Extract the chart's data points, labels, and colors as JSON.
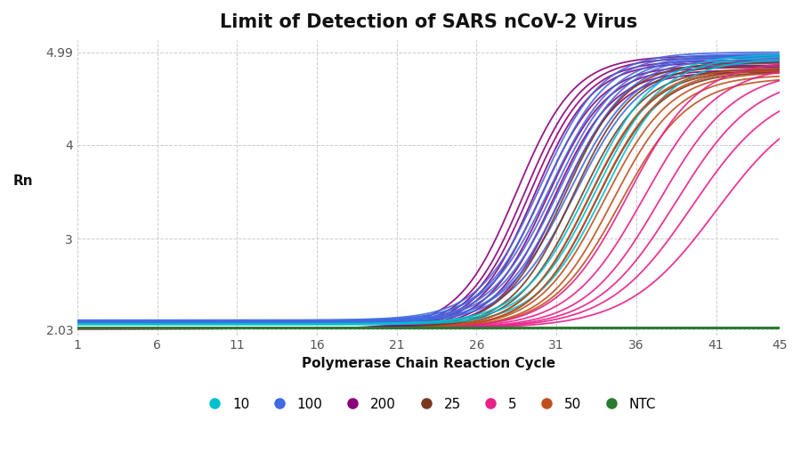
{
  "title": "Limit of Detection of SARS nCoV-2 Virus",
  "xlabel": "Polymerase Chain Reaction Cycle",
  "ylabel": "Rn",
  "x_ticks": [
    1,
    6,
    11,
    16,
    21,
    26,
    31,
    36,
    41,
    45
  ],
  "y_ticks": [
    2.03,
    3,
    4,
    4.99
  ],
  "ylim": [
    1.97,
    5.12
  ],
  "xlim": [
    1,
    45
  ],
  "background_color": "#ffffff",
  "grid_color": "#cccccc",
  "groups": [
    {
      "label": "200",
      "color": "#8b007a",
      "curves": [
        {
          "mid": 28.5,
          "top": 4.95,
          "base": 2.04,
          "k": 0.55
        },
        {
          "mid": 29.0,
          "top": 4.93,
          "base": 2.04,
          "k": 0.55
        },
        {
          "mid": 29.3,
          "top": 4.9,
          "base": 2.04,
          "k": 0.55
        },
        {
          "mid": 29.6,
          "top": 4.88,
          "base": 2.04,
          "k": 0.55
        },
        {
          "mid": 30.0,
          "top": 4.85,
          "base": 2.04,
          "k": 0.53
        },
        {
          "mid": 30.4,
          "top": 4.83,
          "base": 2.04,
          "k": 0.53
        },
        {
          "mid": 30.8,
          "top": 4.8,
          "base": 2.04,
          "k": 0.53
        },
        {
          "mid": 31.2,
          "top": 4.78,
          "base": 2.04,
          "k": 0.53
        }
      ]
    },
    {
      "label": "100",
      "color": "#4169e1",
      "curves": [
        {
          "mid": 30.0,
          "top": 4.99,
          "base": 2.13,
          "k": 0.52
        },
        {
          "mid": 30.3,
          "top": 4.97,
          "base": 2.12,
          "k": 0.52
        },
        {
          "mid": 30.6,
          "top": 4.96,
          "base": 2.12,
          "k": 0.5
        },
        {
          "mid": 30.9,
          "top": 4.95,
          "base": 2.11,
          "k": 0.5
        },
        {
          "mid": 31.2,
          "top": 4.94,
          "base": 2.11,
          "k": 0.5
        },
        {
          "mid": 31.5,
          "top": 4.92,
          "base": 2.1,
          "k": 0.5
        },
        {
          "mid": 31.8,
          "top": 4.9,
          "base": 2.1,
          "k": 0.48
        },
        {
          "mid": 32.2,
          "top": 4.88,
          "base": 2.1,
          "k": 0.48
        }
      ]
    },
    {
      "label": "25",
      "color": "#7b3820",
      "curves": [
        {
          "mid": 31.5,
          "top": 4.88,
          "base": 2.04,
          "k": 0.52
        },
        {
          "mid": 32.0,
          "top": 4.85,
          "base": 2.04,
          "k": 0.52
        },
        {
          "mid": 32.5,
          "top": 4.82,
          "base": 2.04,
          "k": 0.5
        },
        {
          "mid": 33.0,
          "top": 4.8,
          "base": 2.04,
          "k": 0.5
        },
        {
          "mid": 33.5,
          "top": 4.78,
          "base": 2.04,
          "k": 0.5
        }
      ]
    },
    {
      "label": "10",
      "color": "#00c0d0",
      "curves": [
        {
          "mid": 33.0,
          "top": 4.97,
          "base": 2.09,
          "k": 0.48
        },
        {
          "mid": 33.5,
          "top": 4.95,
          "base": 2.09,
          "k": 0.48
        },
        {
          "mid": 34.0,
          "top": 4.92,
          "base": 2.08,
          "k": 0.48
        }
      ]
    },
    {
      "label": "50",
      "color": "#c05020",
      "curves": [
        {
          "mid": 33.0,
          "top": 4.82,
          "base": 2.04,
          "k": 0.5
        },
        {
          "mid": 33.5,
          "top": 4.8,
          "base": 2.04,
          "k": 0.5
        },
        {
          "mid": 34.0,
          "top": 4.78,
          "base": 2.04,
          "k": 0.48
        },
        {
          "mid": 34.5,
          "top": 4.75,
          "base": 2.04,
          "k": 0.48
        },
        {
          "mid": 35.0,
          "top": 4.72,
          "base": 2.04,
          "k": 0.46
        }
      ]
    },
    {
      "label": "5",
      "color": "#e8208a",
      "curves": [
        {
          "mid": 35.5,
          "top": 4.9,
          "base": 2.04,
          "k": 0.45
        },
        {
          "mid": 36.5,
          "top": 4.85,
          "base": 2.04,
          "k": 0.43
        },
        {
          "mid": 37.5,
          "top": 4.8,
          "base": 2.04,
          "k": 0.42
        },
        {
          "mid": 38.5,
          "top": 4.75,
          "base": 2.04,
          "k": 0.4
        },
        {
          "mid": 39.5,
          "top": 4.65,
          "base": 2.04,
          "k": 0.38
        },
        {
          "mid": 41.0,
          "top": 4.55,
          "base": 2.04,
          "k": 0.36
        }
      ]
    },
    {
      "label": "NTC",
      "color": "#2a7a30",
      "curves": [
        {
          "mid": 999,
          "top": 2.06,
          "base": 2.04,
          "k": 0.5
        },
        {
          "mid": 999,
          "top": 2.07,
          "base": 2.05,
          "k": 0.5
        },
        {
          "mid": 999,
          "top": 2.06,
          "base": 2.04,
          "k": 0.5
        },
        {
          "mid": 999,
          "top": 2.05,
          "base": 2.04,
          "k": 0.5
        },
        {
          "mid": 999,
          "top": 2.07,
          "base": 2.05,
          "k": 0.5
        },
        {
          "mid": 999,
          "top": 2.06,
          "base": 2.04,
          "k": 0.5
        },
        {
          "mid": 999,
          "top": 2.05,
          "base": 2.04,
          "k": 0.5
        }
      ]
    }
  ],
  "title_fontsize": 15,
  "axis_label_fontsize": 11,
  "tick_fontsize": 10,
  "legend_fontsize": 11,
  "line_width": 1.3,
  "legend_marker_size": 10
}
